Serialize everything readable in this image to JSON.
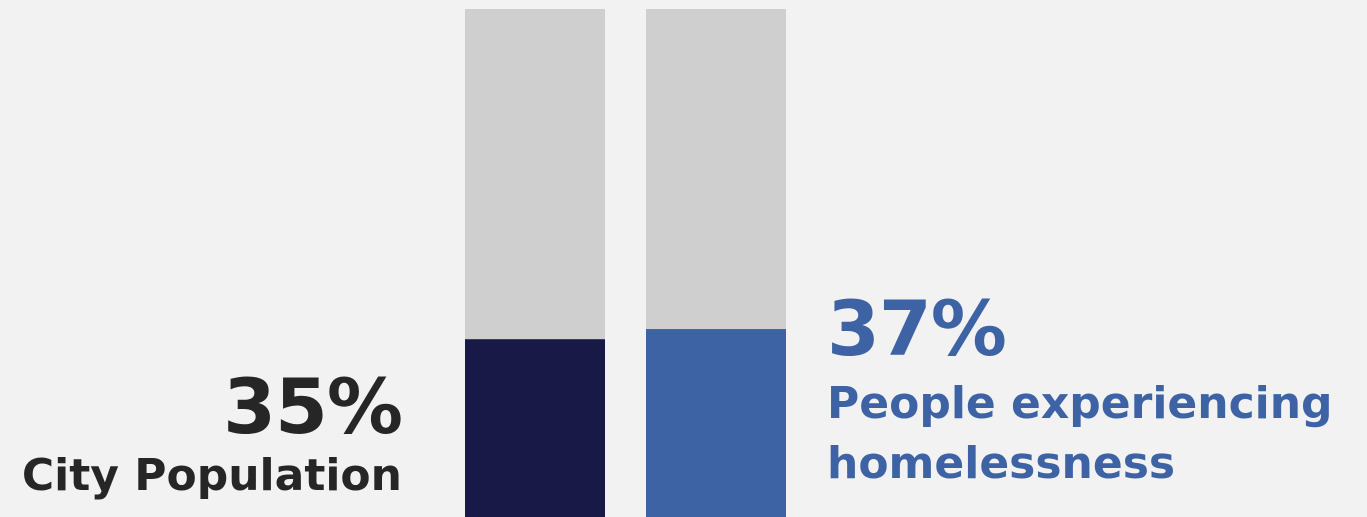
{
  "chart_data": {
    "type": "bar",
    "categories": [
      "City Population",
      "People experiencing homelessness"
    ],
    "values": [
      35,
      37
    ],
    "value_labels": [
      "35%",
      "37%"
    ],
    "ylim": [
      0,
      100
    ],
    "colors": {
      "track": "#cfcfcf",
      "city_population": "#191947",
      "homelessness": "#3e63a5",
      "city_text": "#262626",
      "homeless_text": "#3e63a5"
    },
    "grid": false
  },
  "labels": {
    "city": {
      "value": "35%",
      "name": "City Population"
    },
    "homeless": {
      "value": "37%",
      "name_line1": "People experiencing",
      "name_line2": "homelessness"
    }
  }
}
